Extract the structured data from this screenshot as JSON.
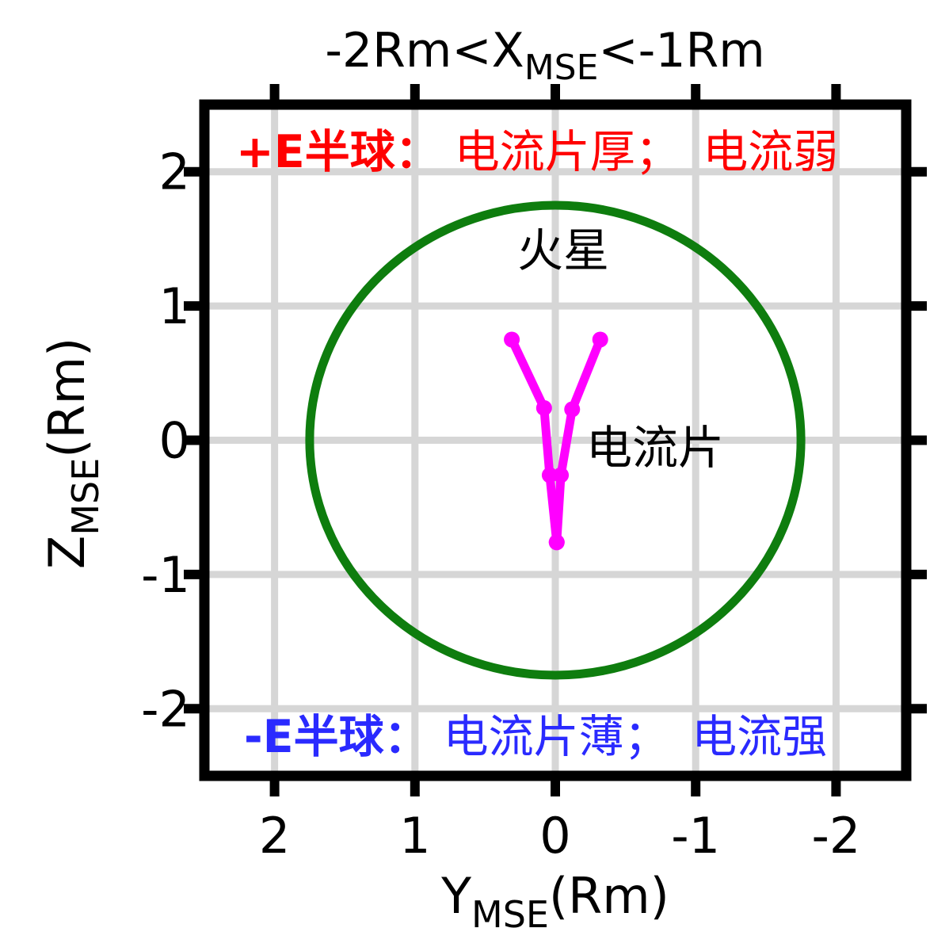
{
  "figure": {
    "title": {
      "pre": "-2Rm<X",
      "sub": "MSE",
      "post": "<-1Rm"
    }
  },
  "axes": {
    "x": {
      "name": "Y",
      "sub": "MSE",
      "unit": "(Rm)",
      "ticks": [
        "2",
        "1",
        "0",
        "-1",
        "-2"
      ],
      "tick_values": [
        2,
        1,
        0,
        -1,
        -2
      ],
      "reversed": true
    },
    "y": {
      "name": "Z",
      "sub": "MSE",
      "unit": "(Rm)",
      "ticks": [
        "2",
        "1",
        "0",
        "-1",
        "-2"
      ],
      "tick_values": [
        2,
        1,
        0,
        -1,
        -2
      ]
    }
  },
  "annotations": {
    "plus_e": {
      "bold": "+E半球：",
      "rest": "电流片厚；　电流弱",
      "color": "#ff0000"
    },
    "minus_e": {
      "bold": "-E半球：",
      "rest": "电流片薄；　电流强",
      "color": "#2a2aff"
    },
    "mars_label": {
      "text": "火星",
      "color": "#0e7d0e"
    },
    "current_sheet_label": {
      "text": "电流片",
      "color": "#ff00ff"
    }
  },
  "colors": {
    "axis": "#000000",
    "grid": "#d6d6d6",
    "background": "#ffffff",
    "mars_circle": "#0e7d0e",
    "current_sheet": "#ff00ff",
    "plus_e_text": "#ff0000",
    "minus_e_text": "#2a2aff"
  },
  "chart_data": {
    "type": "line",
    "title": "-2Rm<X_MSE<-1Rm",
    "xlabel": "Y_MSE(Rm)",
    "ylabel": "Z_MSE(Rm)",
    "xlim": [
      2.5,
      -2.5
    ],
    "ylim": [
      -2.5,
      2.5
    ],
    "x_axis_reversed": true,
    "grid": true,
    "xticks": [
      2,
      1,
      0,
      -1,
      -2
    ],
    "yticks": [
      2,
      1,
      0,
      -1,
      -2
    ],
    "mars_circle": {
      "center_y_mse": 0,
      "center_z_mse": 0,
      "radius_rm": 1.75,
      "color": "#0e7d0e",
      "line_width": 11
    },
    "series": [
      {
        "name": "current_sheet_left_branch",
        "color": "#ff00ff",
        "marker": "circle",
        "line_width": 11,
        "points_y_z": [
          [
            0.31,
            0.75
          ],
          [
            0.08,
            0.24
          ],
          [
            0.04,
            -0.26
          ],
          [
            -0.01,
            -0.76
          ]
        ]
      },
      {
        "name": "current_sheet_right_branch",
        "color": "#ff00ff",
        "marker": "circle",
        "line_width": 11,
        "points_y_z": [
          [
            -0.32,
            0.75
          ],
          [
            -0.12,
            0.23
          ],
          [
            -0.04,
            -0.26
          ],
          [
            -0.01,
            -0.76
          ]
        ]
      }
    ]
  }
}
